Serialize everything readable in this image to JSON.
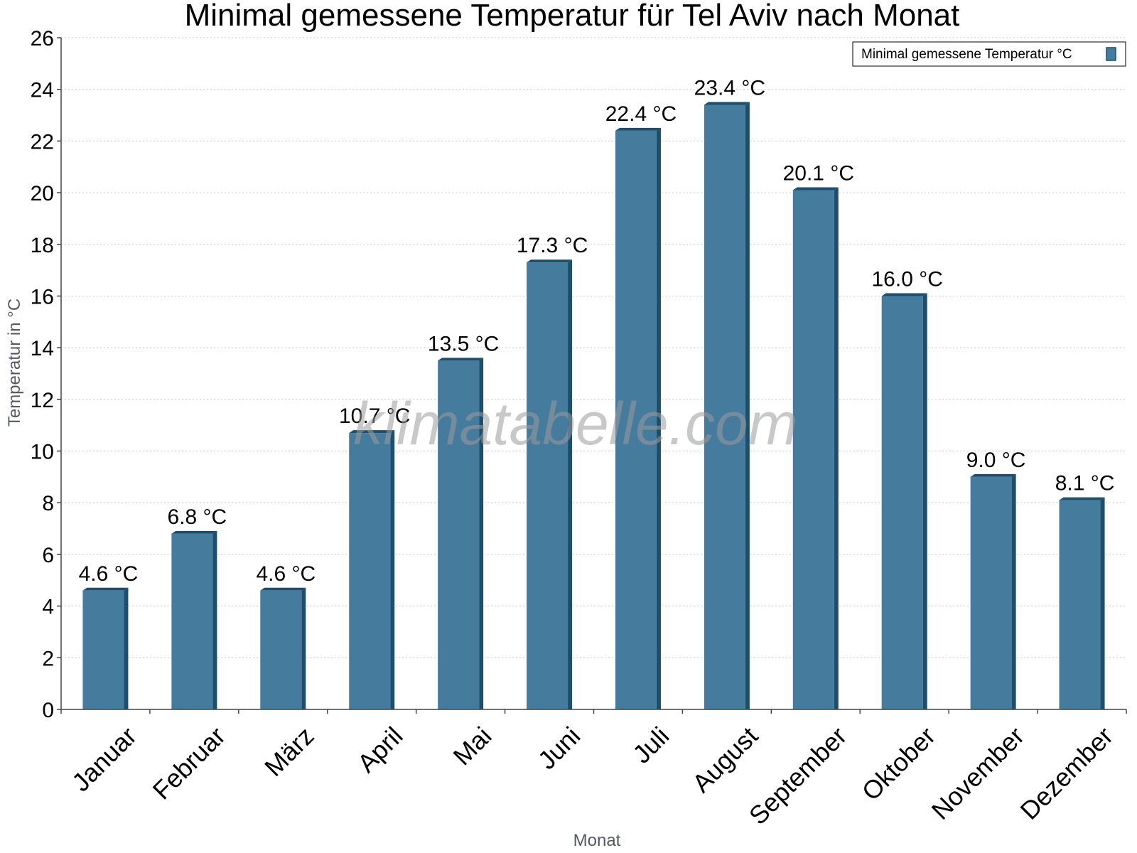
{
  "chart_data": {
    "type": "bar",
    "title": "Minimal gemessene Temperatur für Tel Aviv nach Monat",
    "xlabel": "Monat",
    "ylabel": "Temperatur in °C",
    "ylim": [
      0,
      26
    ],
    "yticks": [
      0,
      2,
      4,
      6,
      8,
      10,
      12,
      14,
      16,
      18,
      20,
      22,
      24,
      26
    ],
    "grid": true,
    "legend_position": "top-right",
    "categories": [
      "Januar",
      "Februar",
      "März",
      "April",
      "Mai",
      "Juni",
      "Juli",
      "August",
      "September",
      "Oktober",
      "November",
      "Dezember"
    ],
    "series": [
      {
        "name": "Minimal gemessene Temperatur °C",
        "color": "#457b9d",
        "side_color": "#1d4e6e",
        "values": [
          4.6,
          6.8,
          4.6,
          10.7,
          13.5,
          17.3,
          22.4,
          23.4,
          20.1,
          16.0,
          9.0,
          8.1
        ],
        "labels": [
          "4.6 °C",
          "6.8 °C",
          "4.6 °C",
          "10.7 °C",
          "13.5 °C",
          "17.3 °C",
          "22.4 °C",
          "23.4 °C",
          "20.1 °C",
          "16.0 °C",
          "9.0 °C",
          "8.1 °C"
        ]
      }
    ],
    "watermark": "klimatabelle.com"
  }
}
